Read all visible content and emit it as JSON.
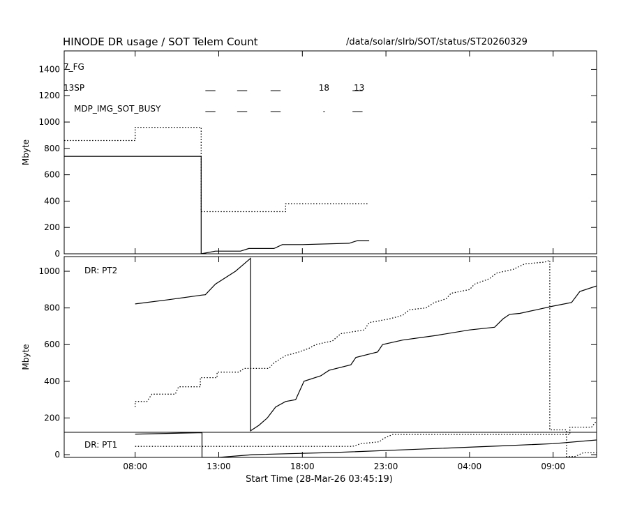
{
  "header": {
    "title": "HINODE DR usage / SOT Telem Count",
    "path": "/data/solar/slrb/SOT/status/ST20260329"
  },
  "style": {
    "ink": "#000000",
    "background": "#ffffff"
  },
  "chart_data": [
    {
      "type": "line",
      "panel": "top",
      "title": "HINODE DR usage / SOT Telem Count",
      "ylabel": "Mbyte",
      "xlim": [
        3.7553,
        35.6
      ],
      "ylim": [
        0,
        1540
      ],
      "yticks": [
        0,
        200,
        400,
        600,
        800,
        1000,
        1200,
        1400
      ],
      "grid": false,
      "annotations": [
        {
          "text": "7_FG",
          "row": "7_FG"
        },
        {
          "text": "13SP",
          "row": "13SP"
        },
        {
          "text": "MDP_IMG_SOT_BUSY",
          "row": "MDP_IMG_SOT_BUSY"
        },
        {
          "text": "18",
          "row": "13SP",
          "x": 19.3
        },
        {
          "text": "13",
          "row": "13SP",
          "x": 21.4
        }
      ],
      "tick_marks": [
        {
          "row": "13SP",
          "x": [
            12.2,
            12.8
          ],
          "y": 1200
        },
        {
          "row": "13SP",
          "x": [
            14.1,
            14.7
          ],
          "y": 1200
        },
        {
          "row": "13SP",
          "x": [
            16.1,
            16.7
          ],
          "y": 1200
        },
        {
          "row": "13SP",
          "x": [
            21.0,
            21.6
          ],
          "y": 1200
        },
        {
          "row": "MDP_IMG_SOT_BUSY",
          "x": [
            12.2,
            12.8
          ],
          "y": 1020
        },
        {
          "row": "MDP_IMG_SOT_BUSY",
          "x": [
            14.1,
            14.7
          ],
          "y": 1020
        },
        {
          "row": "MDP_IMG_SOT_BUSY",
          "x": [
            16.1,
            16.7
          ],
          "y": 1020
        },
        {
          "row": "MDP_IMG_SOT_BUSY",
          "x": [
            19.25,
            19.35
          ],
          "y": 1020
        },
        {
          "row": "MDP_IMG_SOT_BUSY",
          "x": [
            21.0,
            21.6
          ],
          "y": 1020
        }
      ],
      "series": [
        {
          "style": "dotted",
          "points": [
            [
              3.76,
              860
            ],
            [
              8.0,
              860
            ],
            [
              8.0,
              960
            ],
            [
              11.95,
              960
            ],
            [
              11.95,
              320
            ],
            [
              17.0,
              320
            ],
            [
              17.0,
              380
            ],
            [
              21.9,
              380
            ]
          ]
        },
        {
          "style": "solid",
          "points": [
            [
              3.76,
              740
            ],
            [
              11.95,
              740
            ],
            [
              11.95,
              0
            ],
            [
              12.8,
              20
            ],
            [
              14.3,
              20
            ],
            [
              14.8,
              40
            ],
            [
              16.3,
              40
            ],
            [
              16.8,
              70
            ],
            [
              18.0,
              70
            ],
            [
              20.8,
              80
            ],
            [
              21.3,
              100
            ],
            [
              22.0,
              100
            ]
          ]
        }
      ]
    },
    {
      "type": "line",
      "panel": "bottom",
      "ylabel": "Mbyte",
      "xlabel": "Start Time (28-Mar-26 03:45:19)",
      "xlim": [
        3.7553,
        35.6
      ],
      "ylim": [
        -15,
        1080
      ],
      "yticks": [
        0,
        200,
        400,
        600,
        800,
        1000
      ],
      "xticks": [
        "08:00",
        "13:00",
        "18:00",
        "23:00",
        "04:00",
        "09:00"
      ],
      "xtick_hours": [
        8,
        13,
        18,
        23,
        28,
        33
      ],
      "grid": false,
      "annotations": [
        {
          "text": "DR: PT2",
          "series": "PT2",
          "y": 1010
        },
        {
          "text": "DR: PT1",
          "series": "PT1",
          "y": 55
        }
      ],
      "series": [
        {
          "name": "DR: PT2",
          "style": "solid",
          "points": [
            [
              8.0,
              822
            ],
            [
              10.0,
              845
            ],
            [
              12.0,
              870
            ],
            [
              12.2,
              872
            ],
            [
              12.8,
              930
            ],
            [
              14.0,
              1000
            ],
            [
              14.9,
              1070
            ],
            [
              14.9,
              130
            ],
            [
              15.4,
              160
            ],
            [
              15.9,
              200
            ],
            [
              16.4,
              260
            ],
            [
              17.0,
              290
            ],
            [
              17.6,
              300
            ],
            [
              18.1,
              400
            ],
            [
              19.1,
              430
            ],
            [
              19.6,
              460
            ],
            [
              20.9,
              490
            ],
            [
              21.2,
              530
            ],
            [
              22.5,
              560
            ],
            [
              22.8,
              600
            ],
            [
              24.0,
              625
            ],
            [
              26.0,
              650
            ],
            [
              28.0,
              680
            ],
            [
              29.5,
              695
            ],
            [
              30.0,
              740
            ],
            [
              30.4,
              765
            ],
            [
              31.0,
              770
            ],
            [
              32.0,
              790
            ],
            [
              33.0,
              810
            ],
            [
              34.1,
              830
            ],
            [
              34.6,
              890
            ],
            [
              35.6,
              920
            ]
          ]
        },
        {
          "style": "dotted",
          "points": [
            [
              8.0,
              260
            ],
            [
              8.0,
              290
            ],
            [
              8.7,
              290
            ],
            [
              9.0,
              330
            ],
            [
              10.4,
              330
            ],
            [
              10.6,
              370
            ],
            [
              11.9,
              370
            ],
            [
              11.9,
              420
            ],
            [
              12.9,
              420
            ],
            [
              12.9,
              450
            ],
            [
              14.2,
              450
            ],
            [
              14.5,
              470
            ],
            [
              16.0,
              470
            ],
            [
              16.3,
              500
            ],
            [
              17.0,
              540
            ],
            [
              17.8,
              560
            ],
            [
              18.4,
              580
            ],
            [
              18.8,
              600
            ],
            [
              19.8,
              620
            ],
            [
              20.3,
              660
            ],
            [
              21.7,
              680
            ],
            [
              22.0,
              720
            ],
            [
              23.2,
              740
            ],
            [
              24.0,
              760
            ],
            [
              24.4,
              790
            ],
            [
              25.4,
              800
            ],
            [
              25.9,
              830
            ],
            [
              26.6,
              850
            ],
            [
              26.9,
              880
            ],
            [
              28.0,
              900
            ],
            [
              28.3,
              930
            ],
            [
              29.2,
              960
            ],
            [
              29.6,
              990
            ],
            [
              30.6,
              1010
            ],
            [
              31.3,
              1040
            ],
            [
              32.5,
              1050
            ],
            [
              32.8,
              1060
            ],
            [
              32.8,
              135
            ],
            [
              33.8,
              135
            ],
            [
              33.8,
              -10
            ],
            [
              34.3,
              -10
            ],
            [
              34.8,
              10
            ],
            [
              35.6,
              10
            ]
          ]
        },
        {
          "name": "DR: PT1",
          "style": "solid",
          "points": [
            [
              8.0,
              112
            ],
            [
              12.0,
              120
            ],
            [
              12.0,
              -15
            ],
            [
              13.0,
              -15
            ],
            [
              15.0,
              0
            ],
            [
              20.0,
              12
            ],
            [
              25.0,
              30
            ],
            [
              30.0,
              48
            ],
            [
              33.0,
              60
            ],
            [
              35.6,
              80
            ]
          ]
        },
        {
          "style": "dotted",
          "points": [
            [
              8.0,
              45
            ],
            [
              21.0,
              45
            ],
            [
              21.5,
              60
            ],
            [
              22.6,
              70
            ],
            [
              22.9,
              90
            ],
            [
              23.4,
              110
            ],
            [
              34.0,
              110
            ],
            [
              34.0,
              150
            ],
            [
              35.3,
              150
            ],
            [
              35.6,
              185
            ]
          ]
        }
      ]
    }
  ]
}
